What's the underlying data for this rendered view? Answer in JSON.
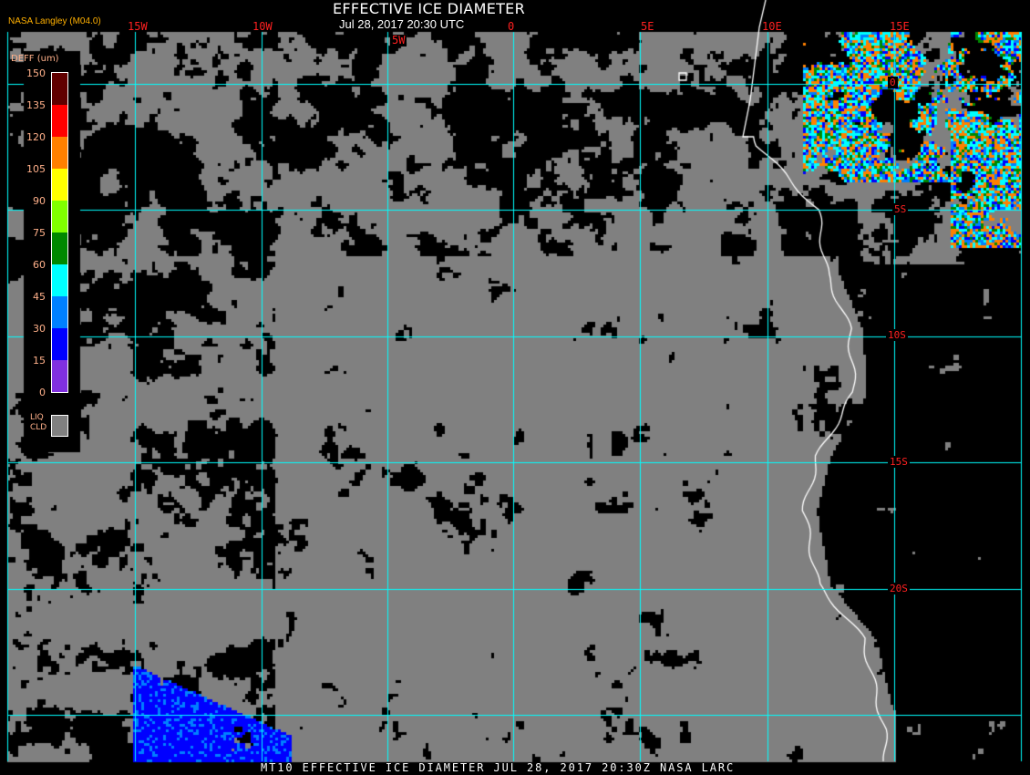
{
  "header": {
    "title": "EFFECTIVE ICE DIAMETER",
    "date": "Jul 28, 2017 20:30 UTC",
    "brand": "NASA Langley (M04.0)"
  },
  "footer": {
    "text": "MT10  EFFECTIVE ICE DIAMETER   JUL 28, 2017 20:30Z   NASA LARC"
  },
  "map": {
    "longitude_labels": [
      "15W",
      "10W",
      "5W",
      "0",
      "5E",
      "10E",
      "15E"
    ],
    "latitude_labels": [
      "0",
      "5S",
      "10S",
      "15S",
      "20S"
    ],
    "grid_color": "#00ffff",
    "label_color": "#ff2020",
    "coastline_color": "#ffffff",
    "clear_color": "#000000",
    "liquid_cloud_color": "#808080"
  },
  "legend": {
    "title": "DEFF (um)",
    "ticks": [
      "150",
      "135",
      "120",
      "105",
      "90",
      "75",
      "60",
      "45",
      "30",
      "15",
      "0"
    ],
    "colors": [
      "#600000",
      "#ff0000",
      "#ff8000",
      "#ffff00",
      "#80ff00",
      "#008800",
      "#00ffff",
      "#0080ff",
      "#0000ff",
      "#8030e0"
    ],
    "liquid_label_1": "LIQ",
    "liquid_label_2": "CLD"
  }
}
